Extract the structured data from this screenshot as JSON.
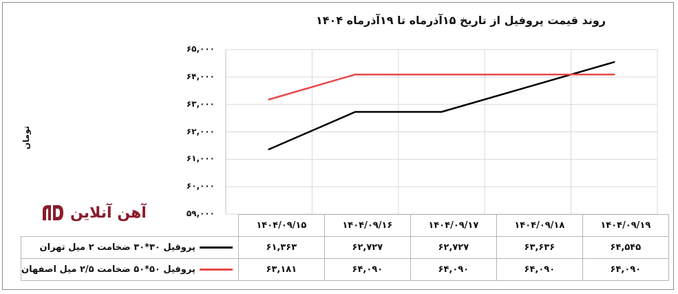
{
  "chart_data": {
    "type": "line",
    "title": "روند قیمت پروفیل از تاریخ ۱۵آذرماه تا ۱۹آذرماه ۱۴۰۴",
    "xlabel": "",
    "ylabel": "تومان",
    "ylim": [
      59000,
      65000
    ],
    "yticks": [
      59000,
      60000,
      61000,
      62000,
      63000,
      64000,
      65000
    ],
    "ytick_labels": [
      "۵۹,۰۰۰",
      "۶۰,۰۰۰",
      "۶۱,۰۰۰",
      "۶۲,۰۰۰",
      "۶۳,۰۰۰",
      "۶۴,۰۰۰",
      "۶۵,۰۰۰"
    ],
    "categories": [
      "۱۴۰۴/۰۹/۱۵",
      "۱۴۰۴/۰۹/۱۶",
      "۱۴۰۴/۰۹/۱۷",
      "۱۴۰۴/۰۹/۱۸",
      "۱۴۰۴/۰۹/۱۹"
    ],
    "grid": true,
    "legend": "data-table",
    "series": [
      {
        "name": "پروفیل ۳۰*۳۰ ضخامت ۲ میل تهران",
        "color": "#000000",
        "values": [
          61363,
          62727,
          62727,
          63636,
          64545
        ],
        "value_labels": [
          "۶۱,۳۶۳",
          "۶۲,۷۲۷",
          "۶۲,۷۲۷",
          "۶۳,۶۳۶",
          "۶۴,۵۴۵"
        ]
      },
      {
        "name": "پروفیل ۵۰*۵۰ ضخامت ۲/۵ میل اصفهان",
        "color": "#e8474a",
        "values": [
          63181,
          64090,
          64090,
          64090,
          64090
        ],
        "value_labels": [
          "۶۳,۱۸۱",
          "۶۴,۰۹۰",
          "۶۴,۰۹۰",
          "۶۴,۰۹۰",
          "۶۴,۰۹۰"
        ]
      }
    ]
  },
  "logo": {
    "text": "آهن آنلاین",
    "color": "#8a1c2b"
  }
}
